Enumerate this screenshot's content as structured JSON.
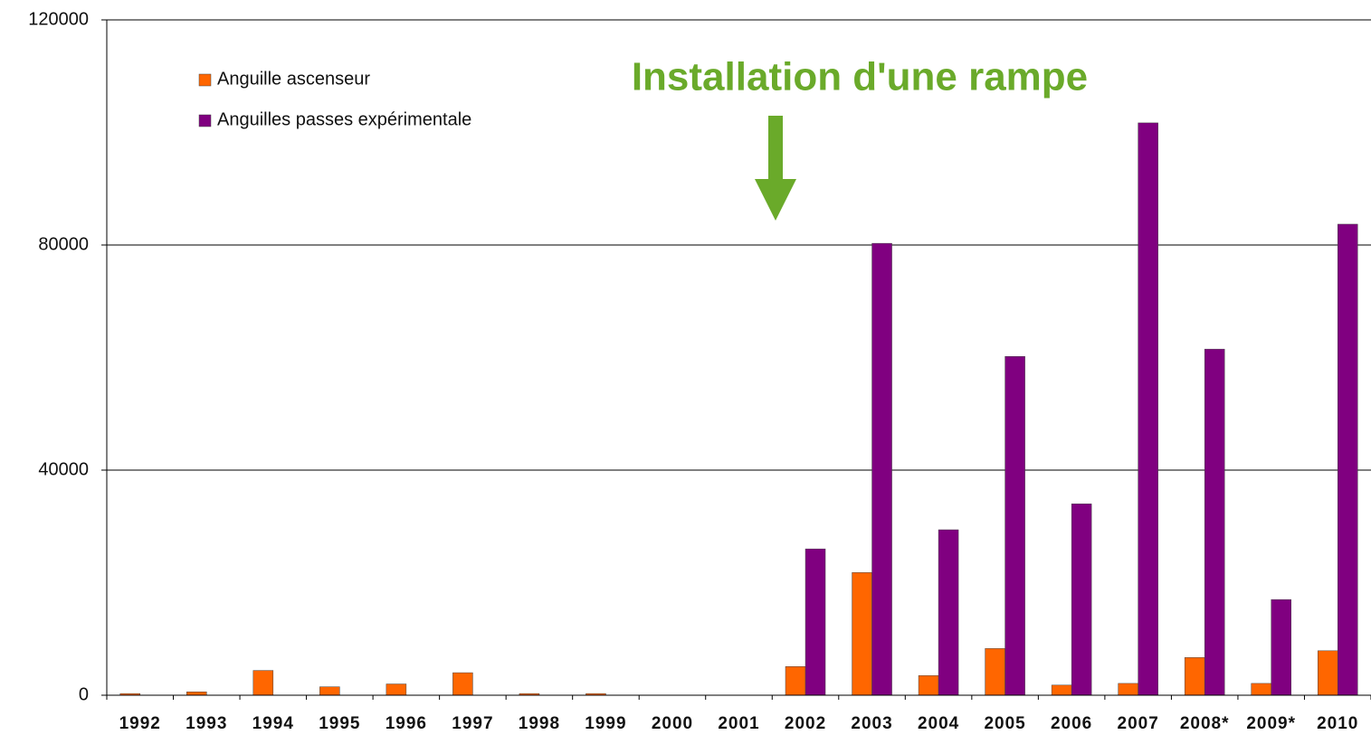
{
  "chart_data": {
    "type": "bar",
    "annotation": "Installation d'une rampe",
    "categories": [
      "1992",
      "1993",
      "1994",
      "1995",
      "1996",
      "1997",
      "1998",
      "1999",
      "2000",
      "2001",
      "2002",
      "2003",
      "2004",
      "2005",
      "2006",
      "2007",
      "2008*",
      "2009*",
      "2010"
    ],
    "series": [
      {
        "name": "Anguille ascenseur",
        "color": "#ff6600",
        "values": [
          300,
          600,
          4400,
          1500,
          2000,
          4000,
          300,
          300,
          0,
          0,
          5100,
          21800,
          3500,
          8300,
          1800,
          2100,
          6700,
          2100,
          7900
        ]
      },
      {
        "name": "Anguilles passes expérimentale",
        "color": "#800080",
        "values": [
          0,
          0,
          0,
          0,
          0,
          0,
          0,
          0,
          0,
          0,
          26000,
          80300,
          29400,
          60200,
          34000,
          101700,
          61500,
          17000,
          83700
        ]
      }
    ],
    "ylim": [
      0,
      120000
    ],
    "yticks": [
      0,
      40000,
      80000,
      120000
    ],
    "grid": true
  }
}
